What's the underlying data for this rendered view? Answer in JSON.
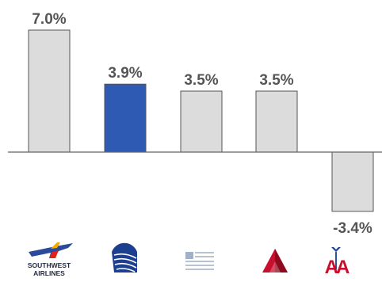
{
  "chart_data": {
    "type": "bar",
    "categories": [
      "Southwest Airlines",
      "United",
      "US Airways",
      "Delta",
      "American Airlines"
    ],
    "values": [
      7.0,
      3.9,
      3.5,
      3.5,
      -3.4
    ],
    "value_labels": [
      "7.0%",
      "3.9%",
      "3.5%",
      "3.5%",
      "-3.4%"
    ],
    "highlight_index": 1,
    "ylim": [
      -4.0,
      7.0
    ],
    "grid": false,
    "title": "",
    "xlabel": "",
    "ylabel": ""
  },
  "colors": {
    "bar_fill": "#dcdcdc",
    "bar_stroke": "#555555",
    "highlight_fill": "#2f5ab4",
    "label_color": "#555555",
    "axis_color": "#666666"
  },
  "logos": [
    {
      "icon": "southwest-airlines-logo-icon",
      "text_line1": "SOUTHWEST",
      "text_line2": "AIRLINES"
    },
    {
      "icon": "united-globe-logo-icon"
    },
    {
      "icon": "us-airways-flag-logo-icon"
    },
    {
      "icon": "delta-widget-logo-icon"
    },
    {
      "icon": "american-airlines-aa-logo-icon",
      "text": "AA"
    }
  ]
}
